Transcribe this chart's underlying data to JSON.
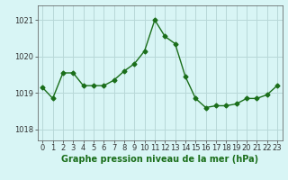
{
  "x": [
    0,
    1,
    2,
    3,
    4,
    5,
    6,
    7,
    8,
    9,
    10,
    11,
    12,
    13,
    14,
    15,
    16,
    17,
    18,
    19,
    20,
    21,
    22,
    23
  ],
  "y": [
    1019.15,
    1018.85,
    1019.55,
    1019.55,
    1019.2,
    1019.2,
    1019.2,
    1019.35,
    1019.6,
    1019.8,
    1020.15,
    1021.0,
    1020.55,
    1020.35,
    1019.45,
    1018.85,
    1018.6,
    1018.65,
    1018.65,
    1018.7,
    1018.85,
    1018.85,
    1018.95,
    1019.2
  ],
  "line_color": "#1a6e1a",
  "marker": "D",
  "marker_size": 2.5,
  "bg_color": "#d8f5f5",
  "grid_color": "#b8d8d8",
  "xlabel": "Graphe pression niveau de la mer (hPa)",
  "xlim": [
    -0.5,
    23.5
  ],
  "ylim": [
    1017.7,
    1021.4
  ],
  "yticks": [
    1018,
    1019,
    1020,
    1021
  ],
  "xticks": [
    0,
    1,
    2,
    3,
    4,
    5,
    6,
    7,
    8,
    9,
    10,
    11,
    12,
    13,
    14,
    15,
    16,
    17,
    18,
    19,
    20,
    21,
    22,
    23
  ],
  "tick_fontsize": 6,
  "xlabel_fontsize": 7,
  "line_width": 1.0
}
